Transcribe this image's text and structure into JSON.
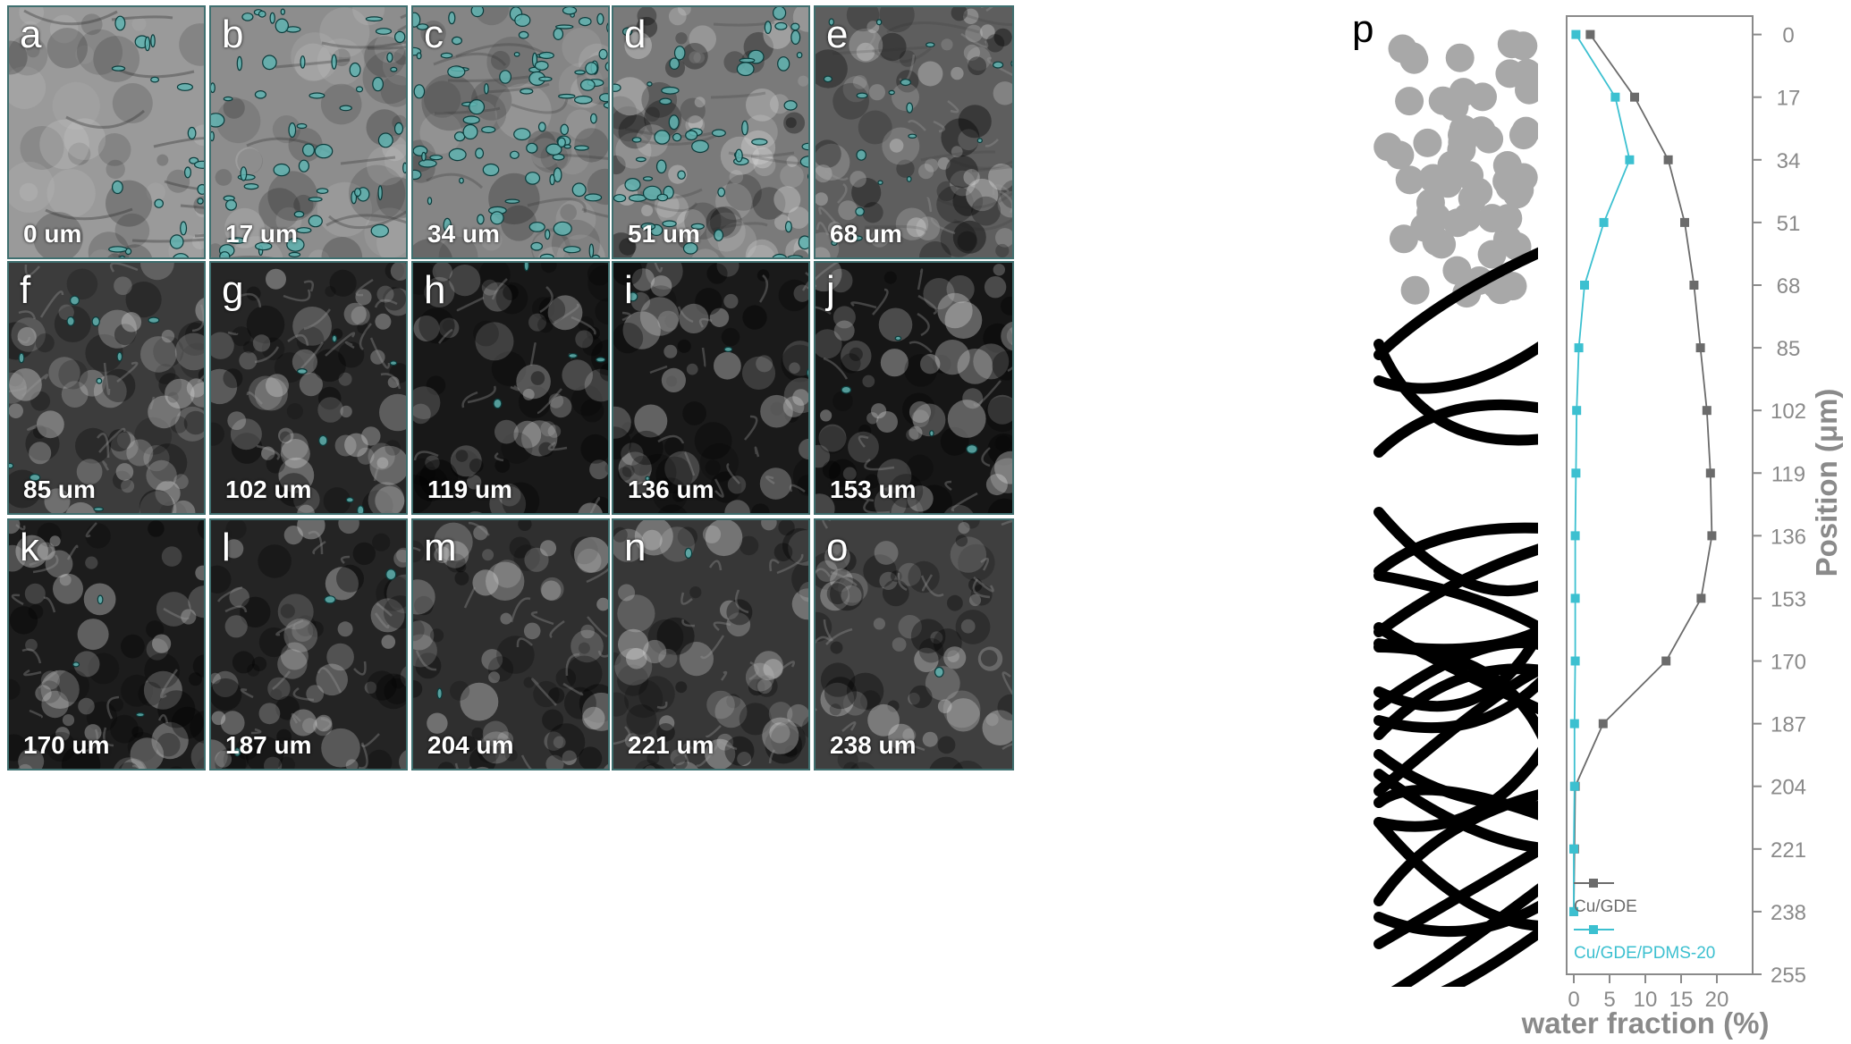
{
  "panels": [
    {
      "letter": "a",
      "depth": "0 um",
      "shade": "#9a9a9a",
      "droplets": 22
    },
    {
      "letter": "b",
      "depth": "17 um",
      "shade": "#8d8d8d",
      "droplets": 60
    },
    {
      "letter": "c",
      "depth": "34 um",
      "shade": "#858585",
      "droplets": 90
    },
    {
      "letter": "d",
      "depth": "51 um",
      "shade": "#7a7a7a",
      "droplets": 55
    },
    {
      "letter": "e",
      "depth": "68 um",
      "shade": "#5e5e5e",
      "droplets": 18
    },
    {
      "letter": "f",
      "depth": "85 um",
      "shade": "#3c3c3c",
      "droplets": 10
    },
    {
      "letter": "g",
      "depth": "102 um",
      "shade": "#262626",
      "droplets": 6
    },
    {
      "letter": "h",
      "depth": "119 um",
      "shade": "#181818",
      "droplets": 4
    },
    {
      "letter": "i",
      "depth": "136 um",
      "shade": "#1a1a1a",
      "droplets": 4
    },
    {
      "letter": "j",
      "depth": "153 um",
      "shade": "#161616",
      "droplets": 4
    },
    {
      "letter": "k",
      "depth": "170 um",
      "shade": "#1c1c1c",
      "droplets": 4
    },
    {
      "letter": "l",
      "depth": "187 um",
      "shade": "#242424",
      "droplets": 3
    },
    {
      "letter": "m",
      "depth": "204 um",
      "shade": "#2f2f2f",
      "droplets": 1
    },
    {
      "letter": "n",
      "depth": "221 um",
      "shade": "#373737",
      "droplets": 1
    },
    {
      "letter": "o",
      "depth": "238 um",
      "shade": "#3f3f3f",
      "droplets": 1
    }
  ],
  "panel_p_letter": "p",
  "colors": {
    "gde": "#6b6b6b",
    "pdms": "#3cc0d0",
    "droplet_fill": "#5fb3b0",
    "droplet_edge": "#0b3b3b",
    "particle": "#a8a8a8",
    "fiber": "#000000"
  },
  "chart_data": {
    "type": "line",
    "xlabel": "water fraction (%)",
    "ylabel": "Position (μm)",
    "xlim": [
      -1,
      25
    ],
    "ylim": [
      255,
      -5
    ],
    "y_inverted": true,
    "y_axis_side": "right",
    "xticks": [
      "0",
      "5",
      "10",
      "15",
      "20"
    ],
    "yticks": [
      "0",
      "17",
      "34",
      "51",
      "68",
      "85",
      "102",
      "119",
      "136",
      "153",
      "170",
      "187",
      "204",
      "221",
      "238",
      "255"
    ],
    "y": [
      0,
      17,
      34,
      51,
      68,
      85,
      102,
      119,
      136,
      153,
      170,
      187,
      204,
      221,
      238
    ],
    "series": [
      {
        "name": "Cu/GDE",
        "color": "#6b6b6b",
        "values": [
          2.3,
          8.5,
          13.2,
          15.5,
          16.8,
          17.7,
          18.6,
          19.1,
          19.3,
          17.8,
          12.9,
          4.1,
          0.2,
          0.1,
          0.0
        ]
      },
      {
        "name": "Cu/GDE/PDMS-20",
        "color": "#3cc0d0",
        "values": [
          0.3,
          5.8,
          7.8,
          4.2,
          1.5,
          0.7,
          0.4,
          0.3,
          0.2,
          0.2,
          0.2,
          0.1,
          0.1,
          0.0,
          0.0
        ]
      }
    ],
    "legend": "bottom-left"
  }
}
